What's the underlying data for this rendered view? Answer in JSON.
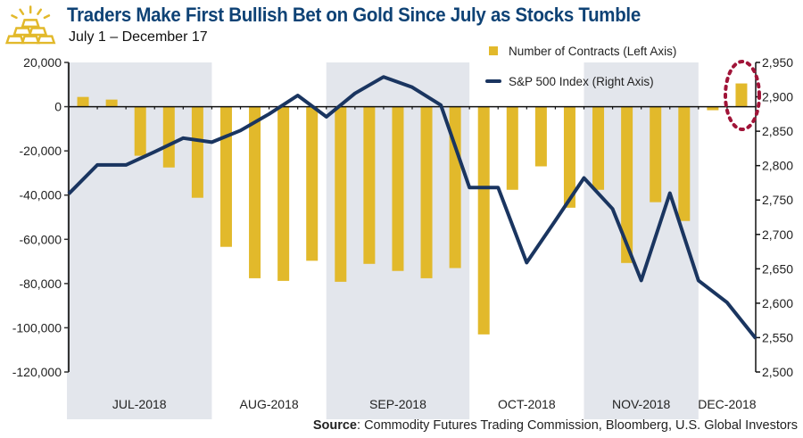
{
  "header": {
    "title": "Traders Make First Bullish Bet on Gold Since July as Stocks Tumble",
    "subtitle": "July 1 – December 17",
    "logo_icon": "gold-bars-icon"
  },
  "source": {
    "label": "Source",
    "text": ": Commodity Futures Trading Commission, Bloomberg, U.S. Global Investors"
  },
  "colors": {
    "bars": "#e2b92b",
    "line": "#1a3560",
    "band": "#e3e6ec",
    "highlight": "#a01438",
    "title": "#0e4275"
  },
  "chart_data": {
    "type": "bar+line",
    "title": "Traders Make First Bullish Bet on Gold Since July as Stocks Tumble",
    "subtitle": "July 1 – December 17",
    "months": [
      {
        "label": "JUL-2018",
        "weeks": 5,
        "shaded": true
      },
      {
        "label": "AUG-2018",
        "weeks": 4,
        "shaded": false
      },
      {
        "label": "SEP-2018",
        "weeks": 5,
        "shaded": true
      },
      {
        "label": "OCT-2018",
        "weeks": 4,
        "shaded": false
      },
      {
        "label": "NOV-2018",
        "weeks": 4,
        "shaded": true
      },
      {
        "label": "DEC-2018",
        "weeks": 2,
        "shaded": false
      }
    ],
    "left_axis": {
      "ylim": [
        -120000,
        20000
      ],
      "ticks": [
        20000,
        0,
        -20000,
        -40000,
        -60000,
        -80000,
        -100000,
        -120000
      ],
      "tick_labels": [
        "20,000",
        "0",
        "-20,000",
        "-40,000",
        "-60,000",
        "-80,000",
        "-100,000",
        "-120,000"
      ]
    },
    "right_axis": {
      "ylim": [
        2500,
        2950
      ],
      "ticks": [
        2950,
        2900,
        2850,
        2800,
        2750,
        2700,
        2650,
        2600,
        2550,
        2500
      ],
      "tick_labels": [
        "2,950",
        "2,900",
        "2,850",
        "2,800",
        "2,750",
        "2,700",
        "2,650",
        "2,600",
        "2,550",
        "2,500"
      ]
    },
    "series": [
      {
        "name": "Number of Contracts (Left Axis)",
        "type": "bar",
        "axis": "left",
        "values": [
          4400,
          3200,
          -22200,
          -27500,
          -41200,
          -63400,
          -77600,
          -78800,
          -69700,
          -79200,
          -71100,
          -74300,
          -77600,
          -73000,
          -103000,
          -37600,
          -27000,
          -45700,
          -37600,
          -70700,
          -43200,
          -51700,
          -1600,
          10500
        ]
      },
      {
        "name": "S&P 500 Index (Right Axis)",
        "type": "line",
        "axis": "right",
        "values": [
          2759,
          2801,
          2801,
          2820,
          2840,
          2834,
          2851,
          2875,
          2902,
          2871,
          2905,
          2929,
          2914,
          2888,
          2768,
          2768,
          2659,
          2720,
          2782,
          2737,
          2633,
          2760,
          2633,
          2601,
          2549
        ]
      }
    ],
    "legend": {
      "position": "top-right",
      "entries": [
        "Number of Contracts (Left Axis)",
        "S&P 500 Index (Right Axis)"
      ]
    },
    "annotation": {
      "type": "dotted-ellipse",
      "target": "last bar (first bullish bet)"
    },
    "grid": false
  }
}
